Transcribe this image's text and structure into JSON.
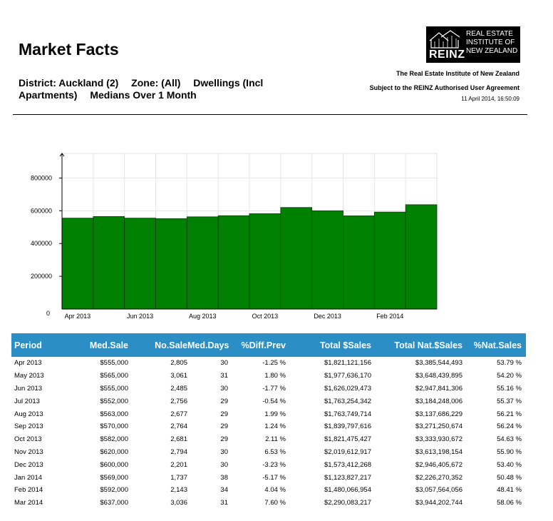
{
  "header": {
    "title": "Market Facts",
    "subtitle": {
      "district": "District: Auckland (2)",
      "zone": "Zone: (All)",
      "dwellings": "Dwellings (Incl Apartments)",
      "medians": "Medians Over 1 Month"
    }
  },
  "logo": {
    "word": "REINZ",
    "line1": "REAL ESTATE",
    "line2": "INSTITUTE OF",
    "line3": "NEW ZEALAND"
  },
  "info": {
    "org": "The Real Estate Institute of New Zealand",
    "agreement": "Subject to the REINZ Authorised User Agreement",
    "date": "11 April 2014, 16:50:09"
  },
  "colors": {
    "bar": "#008000",
    "table_header": "#2b8ec5"
  },
  "chart_data": {
    "type": "bar",
    "categories": [
      "Apr 2013",
      "May 2013",
      "Jun 2013",
      "Jul 2013",
      "Aug 2013",
      "Sep 2013",
      "Oct 2013",
      "Nov 2013",
      "Dec 2013",
      "Jan 2014",
      "Feb 2014",
      "Mar 2014"
    ],
    "values": [
      555000,
      565000,
      555000,
      552000,
      563000,
      570000,
      582000,
      620000,
      600000,
      569000,
      592000,
      637000
    ],
    "x_tick_labels": [
      "Apr 2013",
      "Jun 2013",
      "Aug 2013",
      "Oct 2013",
      "Dec 2013",
      "Feb 2014"
    ],
    "y_ticks": [
      0,
      200000,
      400000,
      600000,
      800000
    ],
    "ylim": [
      0,
      950000
    ],
    "grid": true,
    "title": "",
    "xlabel": "",
    "ylabel": ""
  },
  "table": {
    "headers": {
      "period": "Period",
      "med_sale": "Med.Sale",
      "no_sale": "No.Sale",
      "med_days": "Med.Days",
      "diff_prev": "%Diff.Prev",
      "total_sales": "Total $Sales",
      "total_nat_sales": "Total Nat.$Sales",
      "nat_sales_pct": "%Nat.Sales"
    },
    "rows": [
      {
        "period": "Apr 2013",
        "med_sale": "$555,000",
        "no_sale": "2,805",
        "med_days": "30",
        "diff_prev": "-1.25 %",
        "total_sales": "$1,821,121,156",
        "total_nat_sales": "$3,385,544,493",
        "nat_sales_pct": "53.79 %"
      },
      {
        "period": "May 2013",
        "med_sale": "$565,000",
        "no_sale": "3,061",
        "med_days": "31",
        "diff_prev": "1.80 %",
        "total_sales": "$1,977,636,170",
        "total_nat_sales": "$3,648,439,895",
        "nat_sales_pct": "54.20 %"
      },
      {
        "period": "Jun 2013",
        "med_sale": "$555,000",
        "no_sale": "2,485",
        "med_days": "30",
        "diff_prev": "-1.77 %",
        "total_sales": "$1,626,029,473",
        "total_nat_sales": "$2,947,841,306",
        "nat_sales_pct": "55.16 %"
      },
      {
        "period": "Jul 2013",
        "med_sale": "$552,000",
        "no_sale": "2,756",
        "med_days": "29",
        "diff_prev": "-0.54 %",
        "total_sales": "$1,763,254,342",
        "total_nat_sales": "$3,184,248,006",
        "nat_sales_pct": "55.37 %"
      },
      {
        "period": "Aug 2013",
        "med_sale": "$563,000",
        "no_sale": "2,677",
        "med_days": "29",
        "diff_prev": "1.99 %",
        "total_sales": "$1,763,749,714",
        "total_nat_sales": "$3,137,686,229",
        "nat_sales_pct": "56.21 %"
      },
      {
        "period": "Sep 2013",
        "med_sale": "$570,000",
        "no_sale": "2,764",
        "med_days": "29",
        "diff_prev": "1.24 %",
        "total_sales": "$1,839,797,616",
        "total_nat_sales": "$3,271,250,674",
        "nat_sales_pct": "56.24 %"
      },
      {
        "period": "Oct 2013",
        "med_sale": "$582,000",
        "no_sale": "2,681",
        "med_days": "29",
        "diff_prev": "2.11 %",
        "total_sales": "$1,821,475,427",
        "total_nat_sales": "$3,333,930,672",
        "nat_sales_pct": "54.63 %"
      },
      {
        "period": "Nov 2013",
        "med_sale": "$620,000",
        "no_sale": "2,794",
        "med_days": "30",
        "diff_prev": "6.53 %",
        "total_sales": "$2,019,612,917",
        "total_nat_sales": "$3,613,198,154",
        "nat_sales_pct": "55.90 %"
      },
      {
        "period": "Dec 2013",
        "med_sale": "$600,000",
        "no_sale": "2,201",
        "med_days": "30",
        "diff_prev": "-3.23 %",
        "total_sales": "$1,573,412,268",
        "total_nat_sales": "$2,946,405,672",
        "nat_sales_pct": "53.40 %"
      },
      {
        "period": "Jan 2014",
        "med_sale": "$569,000",
        "no_sale": "1,737",
        "med_days": "38",
        "diff_prev": "-5.17 %",
        "total_sales": "$1,123,827,217",
        "total_nat_sales": "$2,226,270,352",
        "nat_sales_pct": "50.48 %"
      },
      {
        "period": "Feb 2014",
        "med_sale": "$592,000",
        "no_sale": "2,143",
        "med_days": "34",
        "diff_prev": "4.04 %",
        "total_sales": "$1,480,066,954",
        "total_nat_sales": "$3,057,564,056",
        "nat_sales_pct": "48.41 %"
      },
      {
        "period": "Mar 2014",
        "med_sale": "$637,000",
        "no_sale": "3,036",
        "med_days": "31",
        "diff_prev": "7.60 %",
        "total_sales": "$2,290,083,217",
        "total_nat_sales": "$3,944,202,744",
        "nat_sales_pct": "58.06 %"
      }
    ]
  }
}
